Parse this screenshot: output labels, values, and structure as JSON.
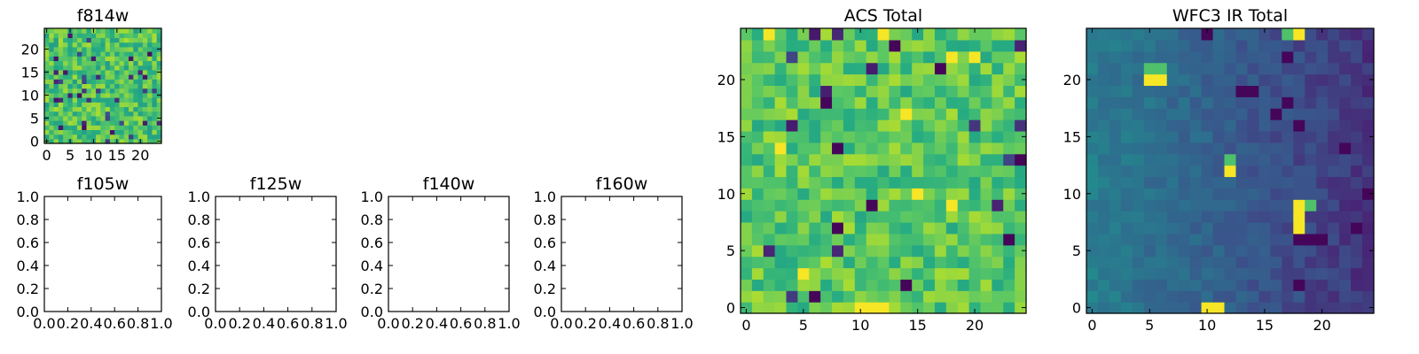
{
  "chart_data": [
    {
      "type": "heatmap",
      "title": "f814w",
      "grid": 25,
      "xlim": [
        -0.5,
        24.5
      ],
      "ylim": [
        -0.5,
        24.5
      ],
      "xticks": [
        0,
        5,
        10,
        15,
        20
      ],
      "yticks": [
        0,
        5,
        10,
        15,
        20
      ],
      "colormap": "viridis",
      "value_range": [
        0,
        1
      ],
      "noise": {
        "seed": 814,
        "mean": 0.72,
        "spread": 0.16,
        "dark_fraction": 0.05
      }
    },
    {
      "type": "empty",
      "title": "f105w",
      "xlim": [
        0,
        1
      ],
      "ylim": [
        0,
        1
      ],
      "xticks": [
        "0.0",
        "0.2",
        "0.4",
        "0.6",
        "0.8",
        "1.0"
      ],
      "yticks": [
        "0.0",
        "0.2",
        "0.4",
        "0.6",
        "0.8",
        "1.0"
      ]
    },
    {
      "type": "empty",
      "title": "f125w",
      "xlim": [
        0,
        1
      ],
      "ylim": [
        0,
        1
      ],
      "xticks": [
        "0.0",
        "0.2",
        "0.4",
        "0.6",
        "0.8",
        "1.0"
      ],
      "yticks": [
        "0.0",
        "0.2",
        "0.4",
        "0.6",
        "0.8",
        "1.0"
      ]
    },
    {
      "type": "empty",
      "title": "f140w",
      "xlim": [
        0,
        1
      ],
      "ylim": [
        0,
        1
      ],
      "xticks": [
        "0.0",
        "0.2",
        "0.4",
        "0.6",
        "0.8",
        "1.0"
      ],
      "yticks": [
        "0.0",
        "0.2",
        "0.4",
        "0.6",
        "0.8",
        "1.0"
      ]
    },
    {
      "type": "empty",
      "title": "f160w",
      "xlim": [
        0,
        1
      ],
      "ylim": [
        0,
        1
      ],
      "xticks": [
        "0.0",
        "0.2",
        "0.4",
        "0.6",
        "0.8",
        "1.0"
      ],
      "yticks": [
        "0.0",
        "0.2",
        "0.4",
        "0.6",
        "0.8",
        "1.0"
      ]
    },
    {
      "type": "heatmap",
      "title": "ACS Total",
      "grid": 25,
      "xlim": [
        -0.5,
        24.5
      ],
      "ylim": [
        -0.5,
        24.5
      ],
      "xticks": [
        0,
        5,
        10,
        15,
        20
      ],
      "yticks": [
        0,
        5,
        10,
        15,
        20
      ],
      "colormap": "viridis",
      "value_range": [
        0,
        1
      ],
      "noise": {
        "seed": 2718,
        "mean": 0.74,
        "spread": 0.14,
        "dark_fraction": 0.03
      },
      "hot_pixels": [
        [
          2,
          24
        ],
        [
          12,
          24
        ],
        [
          18,
          22
        ],
        [
          20,
          22
        ],
        [
          14,
          17
        ],
        [
          3,
          14
        ],
        [
          15,
          10
        ],
        [
          18,
          9
        ],
        [
          5,
          3
        ],
        [
          10,
          0
        ],
        [
          11,
          0
        ],
        [
          12,
          0
        ]
      ],
      "dark_pixels": [
        [
          13,
          23
        ],
        [
          17,
          21
        ],
        [
          7,
          18
        ],
        [
          8,
          14
        ],
        [
          11,
          9
        ],
        [
          8,
          7
        ],
        [
          14,
          2
        ],
        [
          23,
          6
        ],
        [
          24,
          13
        ],
        [
          6,
          1
        ]
      ]
    },
    {
      "type": "heatmap",
      "title": "WFC3 IR Total",
      "grid": 25,
      "xlim": [
        -0.5,
        24.5
      ],
      "ylim": [
        -0.5,
        24.5
      ],
      "xticks": [
        0,
        5,
        10,
        15,
        20
      ],
      "yticks": [
        0,
        5,
        10,
        15,
        20
      ],
      "colormap": "viridis",
      "value_range": [
        0,
        1
      ],
      "gradient": {
        "left": 0.42,
        "right": 0.17
      },
      "noise": {
        "seed": 3141,
        "spread": 0.05
      },
      "hot_pixels": [
        [
          5,
          20
        ],
        [
          6,
          20
        ],
        [
          18,
          9
        ],
        [
          18,
          8
        ],
        [
          18,
          7
        ],
        [
          12,
          12
        ],
        [
          10,
          0
        ],
        [
          11,
          0
        ],
        [
          18,
          24
        ]
      ],
      "warm_pixels": [
        [
          5,
          21
        ],
        [
          6,
          21
        ],
        [
          19,
          9
        ],
        [
          12,
          13
        ],
        [
          17,
          24
        ]
      ],
      "dark_pixels": [
        [
          10,
          24
        ],
        [
          17,
          22
        ],
        [
          13,
          19
        ],
        [
          14,
          19
        ],
        [
          17,
          18
        ],
        [
          18,
          16
        ],
        [
          16,
          17
        ],
        [
          18,
          6
        ],
        [
          19,
          6
        ],
        [
          20,
          6
        ],
        [
          23,
          7
        ],
        [
          24,
          10
        ],
        [
          22,
          14
        ],
        [
          18,
          2
        ]
      ]
    }
  ]
}
